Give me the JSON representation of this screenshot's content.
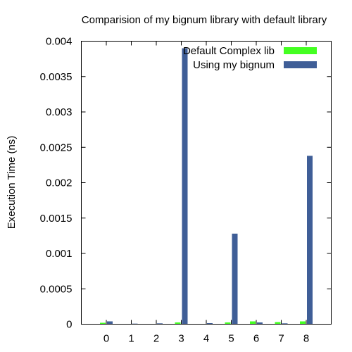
{
  "chart_data": {
    "type": "bar",
    "title": "Comparision of my bignum library with default library",
    "xlabel": "",
    "ylabel": "Execution Time (ns)",
    "categories": [
      "0",
      "1",
      "2",
      "3",
      "4",
      "5",
      "6",
      "7",
      "8"
    ],
    "ylim": [
      0,
      0.004
    ],
    "yticks": [
      "0",
      "0.0005",
      "0.001",
      "0.0015",
      "0.002",
      "0.0025",
      "0.003",
      "0.0035",
      "0.004"
    ],
    "grid": false,
    "legend_position": "top-right",
    "series": [
      {
        "name": "Default Complex lib",
        "color": "#44ff22",
        "values": [
          2e-05,
          5e-06,
          5e-06,
          2.5e-05,
          5e-06,
          2.5e-05,
          4e-05,
          3e-05,
          4e-05
        ]
      },
      {
        "name": "Using my bignum",
        "color": "#3f5e97",
        "values": [
          4e-05,
          8e-06,
          1.2e-05,
          0.0039,
          1.5e-05,
          0.00128,
          2.5e-05,
          1.2e-05,
          0.00238
        ]
      }
    ]
  }
}
